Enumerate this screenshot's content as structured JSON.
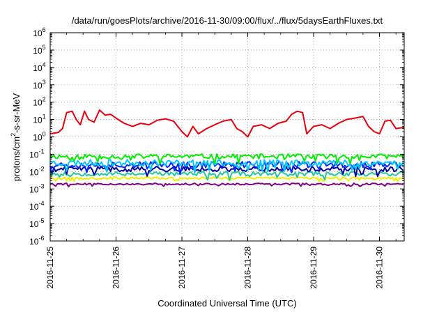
{
  "chart_data": {
    "type": "line",
    "title": "/data/run/goesPlots/archive/2016-11-30/09:00/flux/../flux/5daysEarthFluxes.txt",
    "xlabel": "Coordinated Universal Time (UTC)",
    "ylabel": {
      "prefix": "protons/cm",
      "sup": "2",
      "suffix": "-s-sr-MeV"
    },
    "yscale": "log",
    "ylim": [
      1e-06,
      1000000.0
    ],
    "y_ticks": [
      {
        "value": 1e-06,
        "base": "10",
        "exp": "-6"
      },
      {
        "value": 1e-05,
        "base": "10",
        "exp": "-5"
      },
      {
        "value": 0.0001,
        "base": "10",
        "exp": "-4"
      },
      {
        "value": 0.001,
        "base": "10",
        "exp": "-3"
      },
      {
        "value": 0.01,
        "base": "10",
        "exp": "-2"
      },
      {
        "value": 0.1,
        "base": "10",
        "exp": "-1"
      },
      {
        "value": 1,
        "base": "10",
        "exp": "0"
      },
      {
        "value": 10,
        "base": "10",
        "exp": "1"
      },
      {
        "value": 100,
        "base": "10",
        "exp": "2"
      },
      {
        "value": 1000,
        "base": "10",
        "exp": "3"
      },
      {
        "value": 10000,
        "base": "10",
        "exp": "4"
      },
      {
        "value": 100000,
        "base": "10",
        "exp": "5"
      },
      {
        "value": 1000000,
        "base": "10",
        "exp": "6"
      }
    ],
    "xlim": [
      "2016-11-25 00:00",
      "2016-11-30 09:00"
    ],
    "x_ticks": [
      {
        "value": "2016-11-25 00:00",
        "label": "2016-11-25"
      },
      {
        "value": "2016-11-26 00:00",
        "label": "2016-11-26"
      },
      {
        "value": "2016-11-27 00:00",
        "label": "2016-11-27"
      },
      {
        "value": "2016-11-28 00:00",
        "label": "2016-11-28"
      },
      {
        "value": "2016-11-29 00:00",
        "label": "2016-11-29"
      },
      {
        "value": "2016-11-30 00:00",
        "label": "2016-11-30"
      }
    ],
    "grid": true,
    "series": [
      {
        "color": "#e8000b",
        "points": [
          [
            "2016-11-25 00:00",
            1.5
          ],
          [
            "2016-11-25 03:00",
            1.8
          ],
          [
            "2016-11-25 04:30",
            3
          ],
          [
            "2016-11-25 06:00",
            25
          ],
          [
            "2016-11-25 08:00",
            30
          ],
          [
            "2016-11-25 09:30",
            10
          ],
          [
            "2016-11-25 11:00",
            5
          ],
          [
            "2016-11-25 12:30",
            30
          ],
          [
            "2016-11-25 14:00",
            10
          ],
          [
            "2016-11-25 16:00",
            7
          ],
          [
            "2016-11-25 18:00",
            35
          ],
          [
            "2016-11-25 20:00",
            18
          ],
          [
            "2016-11-25 22:00",
            20
          ],
          [
            "2016-11-26 00:00",
            12
          ],
          [
            "2016-11-26 03:00",
            6
          ],
          [
            "2016-11-26 06:00",
            4
          ],
          [
            "2016-11-26 09:00",
            6
          ],
          [
            "2016-11-26 12:00",
            5
          ],
          [
            "2016-11-26 15:00",
            9
          ],
          [
            "2016-11-26 18:00",
            11
          ],
          [
            "2016-11-26 21:00",
            8
          ],
          [
            "2016-11-27 00:00",
            2
          ],
          [
            "2016-11-27 02:00",
            1
          ],
          [
            "2016-11-27 04:00",
            4
          ],
          [
            "2016-11-27 06:00",
            1.5
          ],
          [
            "2016-11-27 09:00",
            3
          ],
          [
            "2016-11-27 12:00",
            5
          ],
          [
            "2016-11-27 15:00",
            8
          ],
          [
            "2016-11-27 18:00",
            10
          ],
          [
            "2016-11-27 20:00",
            3
          ],
          [
            "2016-11-27 22:00",
            2
          ],
          [
            "2016-11-28 00:00",
            1
          ],
          [
            "2016-11-28 02:00",
            4
          ],
          [
            "2016-11-28 05:00",
            5
          ],
          [
            "2016-11-28 08:00",
            3
          ],
          [
            "2016-11-28 11:00",
            6
          ],
          [
            "2016-11-28 14:00",
            8
          ],
          [
            "2016-11-28 16:00",
            20
          ],
          [
            "2016-11-28 18:00",
            30
          ],
          [
            "2016-11-28 20:00",
            25
          ],
          [
            "2016-11-28 21:30",
            1.5
          ],
          [
            "2016-11-29 00:00",
            4
          ],
          [
            "2016-11-29 03:00",
            5
          ],
          [
            "2016-11-29 06:00",
            3
          ],
          [
            "2016-11-29 09:00",
            6
          ],
          [
            "2016-11-29 12:00",
            10
          ],
          [
            "2016-11-29 15:00",
            12
          ],
          [
            "2016-11-29 18:00",
            15
          ],
          [
            "2016-11-29 20:00",
            4
          ],
          [
            "2016-11-29 22:00",
            2
          ],
          [
            "2016-11-30 00:00",
            1.5
          ],
          [
            "2016-11-30 02:00",
            8
          ],
          [
            "2016-11-30 04:00",
            9
          ],
          [
            "2016-11-30 06:00",
            3
          ],
          [
            "2016-11-30 09:00",
            3.5
          ]
        ]
      },
      {
        "color": "#00ee00",
        "base": 0.075,
        "amp": 0.14,
        "seed": 11
      },
      {
        "color": "#00c8ff",
        "base": 0.032,
        "amp": 0.18,
        "seed": 23
      },
      {
        "color": "#0028ff",
        "base": 0.025,
        "amp": 0.18,
        "seed": 37
      },
      {
        "color": "#0000a0",
        "base": 0.014,
        "amp": 0.15,
        "seed": 41
      },
      {
        "color": "#20c8a0",
        "base": 0.0075,
        "amp": 0.12,
        "seed": 53
      },
      {
        "color": "#eeee00",
        "base": 0.0042,
        "amp": 0.06,
        "seed": 67
      },
      {
        "color": "#800080",
        "base": 0.0019,
        "amp": 0.05,
        "seed": 79
      }
    ]
  }
}
